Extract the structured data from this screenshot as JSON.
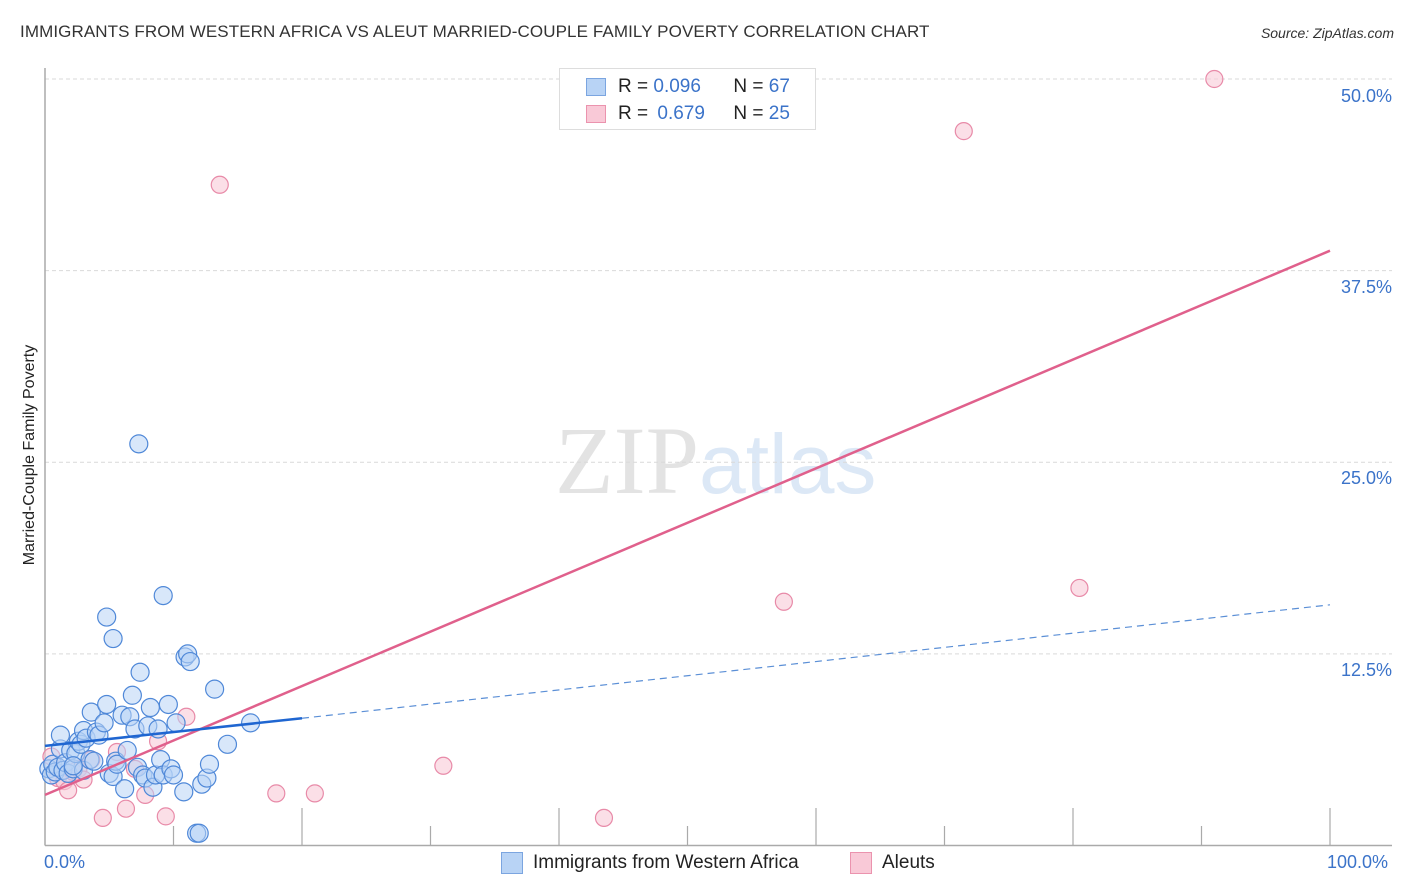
{
  "title": "IMMIGRANTS FROM WESTERN AFRICA VS ALEUT MARRIED-COUPLE FAMILY POVERTY CORRELATION CHART",
  "source": "Source: ZipAtlas.com",
  "watermark": {
    "zip": "ZIP",
    "atlas": "atlas"
  },
  "colors": {
    "blue_fill": "#b8d3f5",
    "blue_stroke": "#4f88d8",
    "blue_line": "#1f66d1",
    "pink_fill": "#f9c9d7",
    "pink_stroke": "#e88aa8",
    "pink_line": "#e0608c",
    "tick_text": "#3b73c9",
    "grid": "#d9d9d9",
    "axis": "#aaaaaa"
  },
  "legend_top": {
    "rows": [
      {
        "r_label": "R =",
        "r_value": "0.096",
        "n_label": "N =",
        "n_value": "67"
      },
      {
        "r_label": "R =",
        "r_value": "0.679",
        "n_label": "N =",
        "n_value": "25"
      }
    ]
  },
  "legend_bottom": {
    "items": [
      {
        "label": "Immigrants from Western Africa"
      },
      {
        "label": "Aleuts"
      }
    ]
  },
  "axes": {
    "y_label": "Married-Couple Family Poverty",
    "y_ticks": [
      "50.0%",
      "37.5%",
      "25.0%",
      "12.5%"
    ],
    "x_ticks": [
      "0.0%",
      "100.0%"
    ]
  },
  "chart_data": {
    "type": "scatter",
    "title": "IMMIGRANTS FROM WESTERN AFRICA VS ALEUT MARRIED-COUPLE FAMILY POVERTY CORRELATION CHART",
    "xlabel": "",
    "ylabel": "Married-Couple Family Poverty",
    "xlim": [
      0,
      100
    ],
    "ylim": [
      0,
      50
    ],
    "x_tick_labels": [
      "0.0%",
      "100.0%"
    ],
    "y_tick_labels": [
      "12.5%",
      "25.0%",
      "37.5%",
      "50.0%"
    ],
    "grid": true,
    "legend_position": "top-center and bottom",
    "series": [
      {
        "name": "Immigrants from Western Africa",
        "R": 0.096,
        "N": 67,
        "trend": {
          "x0": 0,
          "y0": 6.5,
          "x1": 20,
          "y1": 8.3,
          "dashed_to_x": 100,
          "dashed_to_y": 15.7
        },
        "points": [
          [
            0.3,
            5.0
          ],
          [
            0.5,
            4.6
          ],
          [
            0.6,
            5.3
          ],
          [
            0.8,
            4.8
          ],
          [
            1.0,
            5.1
          ],
          [
            1.2,
            6.3
          ],
          [
            1.2,
            7.2
          ],
          [
            1.4,
            4.9
          ],
          [
            1.6,
            5.4
          ],
          [
            1.8,
            4.7
          ],
          [
            2.0,
            6.2
          ],
          [
            2.2,
            5.0
          ],
          [
            2.4,
            6.0
          ],
          [
            2.6,
            6.8
          ],
          [
            2.8,
            6.6
          ],
          [
            3.0,
            7.5
          ],
          [
            3.0,
            4.9
          ],
          [
            3.2,
            7.0
          ],
          [
            3.5,
            5.6
          ],
          [
            3.6,
            8.7
          ],
          [
            3.8,
            5.5
          ],
          [
            4.0,
            7.4
          ],
          [
            4.2,
            7.2
          ],
          [
            4.6,
            8.0
          ],
          [
            4.8,
            9.2
          ],
          [
            5.0,
            4.7
          ],
          [
            5.3,
            4.5
          ],
          [
            5.5,
            5.5
          ],
          [
            5.6,
            5.3
          ],
          [
            6.0,
            8.5
          ],
          [
            6.2,
            3.7
          ],
          [
            6.4,
            6.2
          ],
          [
            6.6,
            8.4
          ],
          [
            6.8,
            9.8
          ],
          [
            7.0,
            7.6
          ],
          [
            7.2,
            5.1
          ],
          [
            7.4,
            11.3
          ],
          [
            7.6,
            4.6
          ],
          [
            7.8,
            4.4
          ],
          [
            8.0,
            7.8
          ],
          [
            8.2,
            9.0
          ],
          [
            8.4,
            3.8
          ],
          [
            8.6,
            4.6
          ],
          [
            8.8,
            7.6
          ],
          [
            9.0,
            5.6
          ],
          [
            9.2,
            16.3
          ],
          [
            9.2,
            4.6
          ],
          [
            9.6,
            9.2
          ],
          [
            9.8,
            5.0
          ],
          [
            10.0,
            4.6
          ],
          [
            10.2,
            8.0
          ],
          [
            10.8,
            3.5
          ],
          [
            10.9,
            12.3
          ],
          [
            11.1,
            12.5
          ],
          [
            11.3,
            12.0
          ],
          [
            11.8,
            0.8
          ],
          [
            12.0,
            0.8
          ],
          [
            12.2,
            4.0
          ],
          [
            12.6,
            4.4
          ],
          [
            12.8,
            5.3
          ],
          [
            13.2,
            10.2
          ],
          [
            14.2,
            6.6
          ],
          [
            16.0,
            8.0
          ],
          [
            4.8,
            14.9
          ],
          [
            5.3,
            13.5
          ],
          [
            7.3,
            26.2
          ],
          [
            2.2,
            5.2
          ]
        ]
      },
      {
        "name": "Aleuts",
        "R": 0.679,
        "N": 25,
        "trend": {
          "x0": 0,
          "y0": 3.3,
          "x1": 100,
          "y1": 38.8
        },
        "points": [
          [
            0.5,
            5.8
          ],
          [
            1.0,
            4.4
          ],
          [
            1.5,
            4.2
          ],
          [
            1.8,
            3.6
          ],
          [
            2.2,
            4.8
          ],
          [
            2.6,
            5.0
          ],
          [
            3.0,
            4.3
          ],
          [
            3.6,
            5.6
          ],
          [
            4.5,
            1.8
          ],
          [
            5.6,
            6.1
          ],
          [
            6.3,
            2.4
          ],
          [
            7.0,
            5.0
          ],
          [
            7.8,
            3.3
          ],
          [
            8.8,
            6.8
          ],
          [
            9.4,
            1.9
          ],
          [
            11.0,
            8.4
          ],
          [
            13.6,
            43.1
          ],
          [
            18.0,
            3.4
          ],
          [
            21.0,
            3.4
          ],
          [
            31.0,
            5.2
          ],
          [
            43.5,
            1.8
          ],
          [
            57.5,
            15.9
          ],
          [
            71.5,
            46.6
          ],
          [
            80.5,
            16.8
          ],
          [
            91.0,
            50.0
          ]
        ]
      }
    ]
  }
}
